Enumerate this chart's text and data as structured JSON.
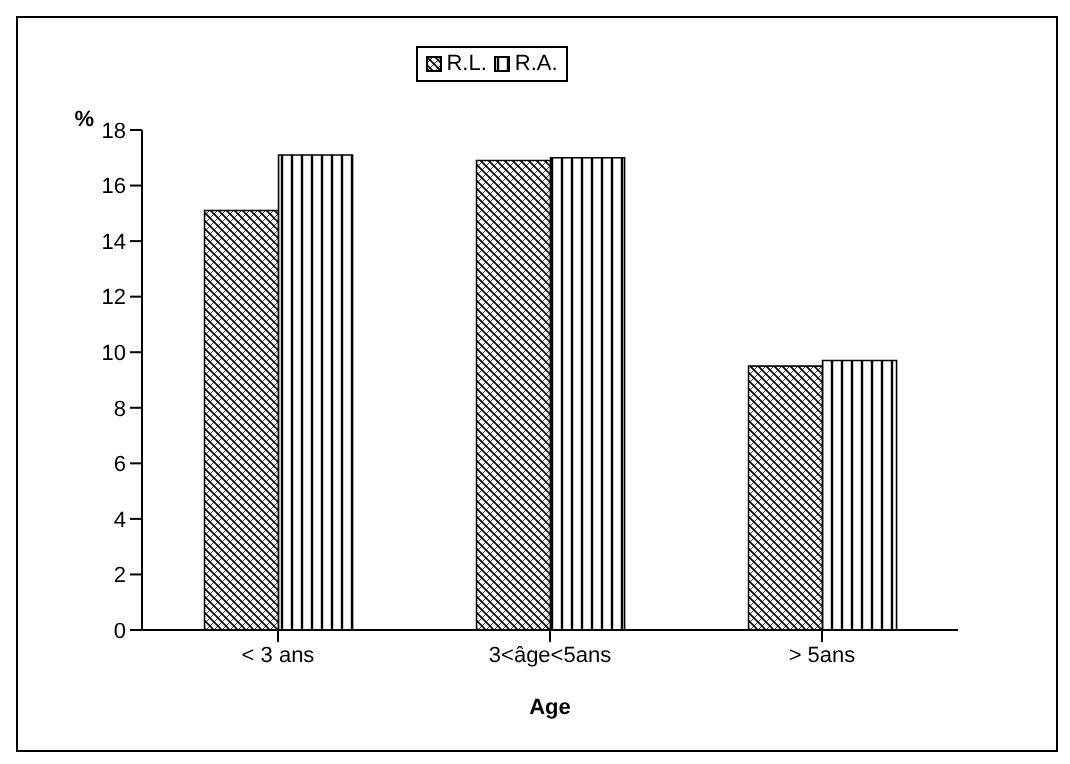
{
  "chart_data": {
    "type": "bar",
    "xlabel": "Age",
    "ylabel": "%",
    "categories": [
      "< 3 ans",
      "3<âge<5ans",
      "> 5ans"
    ],
    "series": [
      {
        "name": "R.L.",
        "color": "#000000",
        "values": [
          15.1,
          16.9,
          9.5
        ]
      },
      {
        "name": "R.A.",
        "color": "#000000",
        "values": [
          17.1,
          17.0,
          9.7
        ]
      }
    ],
    "ylim": [
      0,
      18
    ],
    "yticks": [
      0,
      2,
      4,
      6,
      8,
      10,
      12,
      14,
      16,
      18
    ],
    "grid": false,
    "legend": "top"
  }
}
